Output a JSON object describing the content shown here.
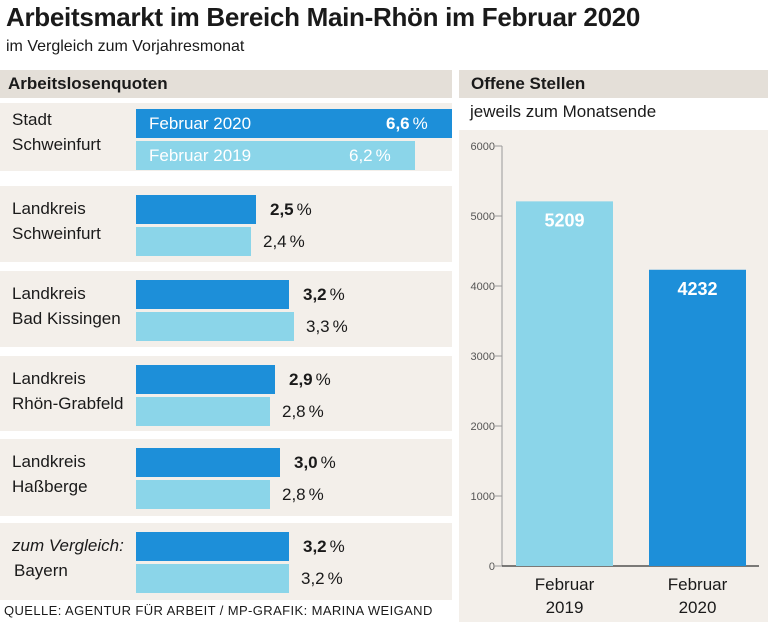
{
  "header": {
    "title": "Arbeitsmarkt im Bereich Main-Rhön im Februar 2020",
    "subtitle": "im Vergleich zum Vorjahresmonat"
  },
  "left_panel": {
    "title": "Arbeitslosenquoten",
    "pct_sign": "%",
    "legend_2020": "Februar 2020",
    "legend_2019": "Februar 2019",
    "regions": [
      {
        "line1": "Stadt",
        "line2": "Schweinfurt",
        "italic_line1": false
      },
      {
        "line1": "Landkreis",
        "line2": "Schweinfurt",
        "italic_line1": false
      },
      {
        "line1": "Landkreis",
        "line2": "Bad Kissingen",
        "italic_line1": false
      },
      {
        "line1": "Landkreis",
        "line2": "Rhön-Grabfeld",
        "italic_line1": false
      },
      {
        "line1": "Landkreis",
        "line2": "Haßberge",
        "italic_line1": false
      },
      {
        "line1": "zum Vergleich:",
        "line2": "Bayern",
        "italic_line1": true
      }
    ]
  },
  "right_panel": {
    "title": "Offene Stellen",
    "subtitle": "jeweils zum Monatsende"
  },
  "source": "QUELLE: AGENTUR FÜR ARBEIT / MP-GRAFIK: MARINA WEIGAND",
  "colors": {
    "bar_2020": "#1d8fd9",
    "bar_2019": "#8bd5e9",
    "panel_bg": "#f3efea",
    "header_bg": "#e4dfd8"
  },
  "chart_data": [
    {
      "type": "bar",
      "orientation": "horizontal",
      "title": "Arbeitslosenquoten",
      "unit": "%",
      "categories": [
        "Stadt Schweinfurt",
        "Landkreis Schweinfurt",
        "Landkreis Bad Kissingen",
        "Landkreis Rhön-Grabfeld",
        "Landkreis Haßberge",
        "Bayern"
      ],
      "series": [
        {
          "name": "Februar 2020",
          "values": [
            "6,6",
            "2,5",
            "3,2",
            "2,9",
            "3,0",
            "3,2"
          ]
        },
        {
          "name": "Februar 2019",
          "values": [
            "6,2",
            "2,4",
            "3,3",
            "2,8",
            "2,8",
            "3,2"
          ]
        }
      ],
      "xlim": [
        0,
        6.6
      ]
    },
    {
      "type": "bar",
      "orientation": "vertical",
      "title": "Offene Stellen",
      "subtitle": "jeweils zum Monatsende",
      "categories": [
        [
          "Februar",
          "2019"
        ],
        [
          "Februar",
          "2020"
        ]
      ],
      "values": [
        5209,
        4232
      ],
      "yticks": [
        "0",
        "1000",
        "2000",
        "3000",
        "4000",
        "5000",
        "6000"
      ],
      "ylim": [
        0,
        6000
      ],
      "colors": [
        "#8bd5e9",
        "#1d8fd9"
      ]
    }
  ]
}
